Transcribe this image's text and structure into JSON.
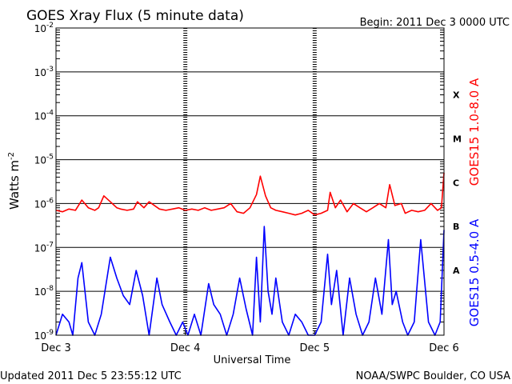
{
  "header": {
    "title": "GOES Xray Flux (5 minute data)",
    "begin": "Begin:  2011 Dec 3 0000 UTC"
  },
  "footer": {
    "updated": "Updated 2011 Dec  5 23:55:12 UTC",
    "credit": "NOAA/SWPC Boulder, CO USA"
  },
  "colors": {
    "long_channel": "#ff0000",
    "short_channel": "#0000ff",
    "grid": "#000000"
  },
  "chart_data": {
    "type": "line",
    "title": "GOES Xray Flux (5 minute data)",
    "xlabel": "Universal Time",
    "ylabel": "Watts m",
    "ylabel_sup": "-2",
    "y_scale": "log",
    "ylim": [
      1e-09,
      0.01
    ],
    "y_ticks": [
      {
        "base": "10",
        "exp": "-2",
        "value": 0.01
      },
      {
        "base": "10",
        "exp": "-3",
        "value": 0.001
      },
      {
        "base": "10",
        "exp": "-4",
        "value": 0.0001
      },
      {
        "base": "10",
        "exp": "-5",
        "value": 1e-05
      },
      {
        "base": "10",
        "exp": "-6",
        "value": 1e-06
      },
      {
        "base": "10",
        "exp": "-7",
        "value": 1e-07
      },
      {
        "base": "10",
        "exp": "-8",
        "value": 1e-08
      },
      {
        "base": "10",
        "exp": "-9",
        "value": 1e-09
      }
    ],
    "xlim": [
      "Dec 3",
      "Dec 6"
    ],
    "x_ticks": [
      "Dec 3",
      "Dec 4",
      "Dec 5",
      "Dec 6"
    ],
    "flare_classes": [
      {
        "label": "X",
        "value": 0.0003
      },
      {
        "label": "M",
        "value": 3e-05
      },
      {
        "label": "C",
        "value": 3e-06
      },
      {
        "label": "B",
        "value": 3e-07
      },
      {
        "label": "A",
        "value": 3e-08
      }
    ],
    "series": [
      {
        "name": "GOES15 1.0-8.0 A",
        "color": "#ff0000",
        "x_days": [
          0,
          0.05,
          0.1,
          0.15,
          0.2,
          0.25,
          0.3,
          0.33,
          0.37,
          0.42,
          0.47,
          0.5,
          0.55,
          0.6,
          0.63,
          0.68,
          0.72,
          0.8,
          0.85,
          0.9,
          0.95,
          1.0,
          1.05,
          1.1,
          1.15,
          1.2,
          1.25,
          1.3,
          1.35,
          1.4,
          1.45,
          1.5,
          1.55,
          1.58,
          1.62,
          1.66,
          1.7,
          1.75,
          1.8,
          1.85,
          1.9,
          1.95,
          2.0,
          2.05,
          2.1,
          2.12,
          2.16,
          2.2,
          2.25,
          2.3,
          2.35,
          2.4,
          2.45,
          2.5,
          2.55,
          2.58,
          2.62,
          2.67,
          2.7,
          2.75,
          2.8,
          2.85,
          2.9,
          2.95,
          2.98,
          3.0
        ],
        "y": [
          7e-07,
          6.5e-07,
          7.5e-07,
          7e-07,
          1.2e-06,
          8e-07,
          7e-07,
          8e-07,
          1.5e-06,
          1.1e-06,
          8e-07,
          7.5e-07,
          7e-07,
          7.5e-07,
          1.1e-06,
          8e-07,
          1.1e-06,
          7.5e-07,
          7e-07,
          7.5e-07,
          8e-07,
          7e-07,
          7.5e-07,
          7e-07,
          8e-07,
          7e-07,
          7.5e-07,
          8e-07,
          1e-06,
          6.5e-07,
          6e-07,
          8e-07,
          1.6e-06,
          4.2e-06,
          1.5e-06,
          8e-07,
          7e-07,
          6.5e-07,
          6e-07,
          5.5e-07,
          6e-07,
          7e-07,
          5.5e-07,
          6e-07,
          7e-07,
          1.8e-06,
          8e-07,
          1.2e-06,
          6.5e-07,
          1e-06,
          8e-07,
          6.5e-07,
          8e-07,
          1e-06,
          8e-07,
          2.7e-06,
          9e-07,
          1e-06,
          6e-07,
          7e-07,
          6.5e-07,
          7e-07,
          1e-06,
          7e-07,
          8e-07,
          5e-06
        ]
      },
      {
        "name": "GOES15 0.5-4.0 A",
        "color": "#0000ff",
        "x_days": [
          0,
          0.05,
          0.1,
          0.13,
          0.17,
          0.2,
          0.25,
          0.3,
          0.35,
          0.42,
          0.47,
          0.52,
          0.57,
          0.62,
          0.67,
          0.72,
          0.78,
          0.82,
          0.88,
          0.93,
          0.98,
          1.02,
          1.07,
          1.12,
          1.18,
          1.22,
          1.27,
          1.32,
          1.37,
          1.42,
          1.47,
          1.52,
          1.55,
          1.58,
          1.61,
          1.64,
          1.67,
          1.7,
          1.75,
          1.8,
          1.85,
          1.9,
          1.95,
          2.0,
          2.05,
          2.1,
          2.13,
          2.17,
          2.22,
          2.27,
          2.32,
          2.37,
          2.42,
          2.47,
          2.52,
          2.57,
          2.6,
          2.63,
          2.68,
          2.72,
          2.77,
          2.82,
          2.88,
          2.93,
          2.97,
          3.0
        ],
        "y": [
          1e-09,
          3e-09,
          2e-09,
          1e-09,
          2e-08,
          4.5e-08,
          2e-09,
          1e-09,
          3e-09,
          6e-08,
          2e-08,
          8e-09,
          5e-09,
          3e-08,
          8e-09,
          1e-09,
          2e-08,
          5e-09,
          2e-09,
          1e-09,
          2e-09,
          1e-09,
          3e-09,
          1e-09,
          1.5e-08,
          5e-09,
          3e-09,
          1e-09,
          3e-09,
          2e-08,
          4e-09,
          1e-09,
          6e-08,
          2e-09,
          3e-07,
          1e-08,
          3e-09,
          2e-08,
          2e-09,
          1e-09,
          3e-09,
          2e-09,
          1e-09,
          1e-09,
          2e-09,
          7e-08,
          5e-09,
          3e-08,
          1e-09,
          2e-08,
          3e-09,
          1e-09,
          2e-09,
          2e-08,
          3e-09,
          1.5e-07,
          5e-09,
          1e-08,
          2e-09,
          1e-09,
          2e-09,
          1.5e-07,
          2e-09,
          1e-09,
          2e-09,
          2.5e-07
        ]
      }
    ]
  }
}
